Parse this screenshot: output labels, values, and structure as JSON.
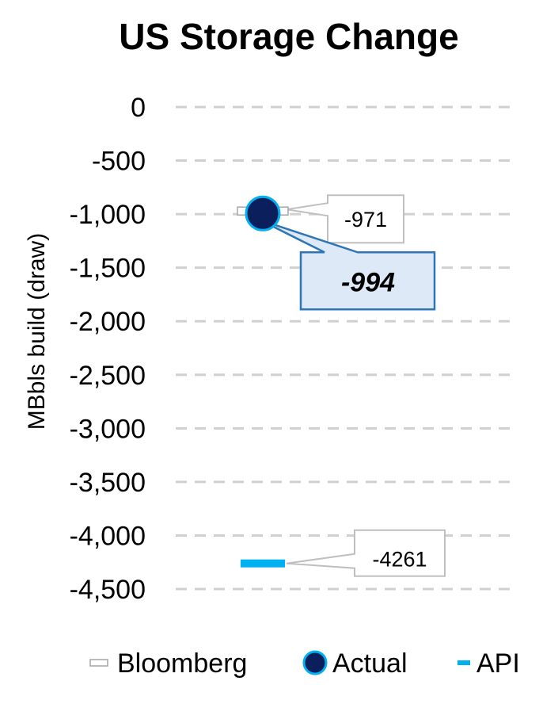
{
  "chart_data": {
    "type": "scatter",
    "title": "US Storage Change",
    "xlabel": "",
    "ylabel": "MBbls build (draw)",
    "ylim": [
      -4500,
      0
    ],
    "yticks": [
      0,
      -500,
      -1000,
      -1500,
      -2000,
      -2500,
      -3000,
      -3500,
      -4000,
      -4500
    ],
    "ytick_labels": [
      "0",
      "-500",
      "-1,000",
      "-1,500",
      "-2,000",
      "-2,500",
      "-3,000",
      "-3,500",
      "-4,000",
      "-4,500"
    ],
    "grid": true,
    "legend_position": "bottom",
    "series": [
      {
        "name": "Bloomberg",
        "values": [
          -971
        ],
        "data_label": "-971",
        "marker": "dash-outline",
        "color": "#ffffff",
        "stroke": "#a6a6a6"
      },
      {
        "name": "Actual",
        "values": [
          -994
        ],
        "data_label": "-994",
        "marker": "circle",
        "color": "#0b1f5c",
        "stroke": "#00b0f0"
      },
      {
        "name": "API",
        "values": [
          -4261
        ],
        "data_label": "-4261",
        "marker": "dash",
        "color": "#00b0f0"
      }
    ]
  }
}
